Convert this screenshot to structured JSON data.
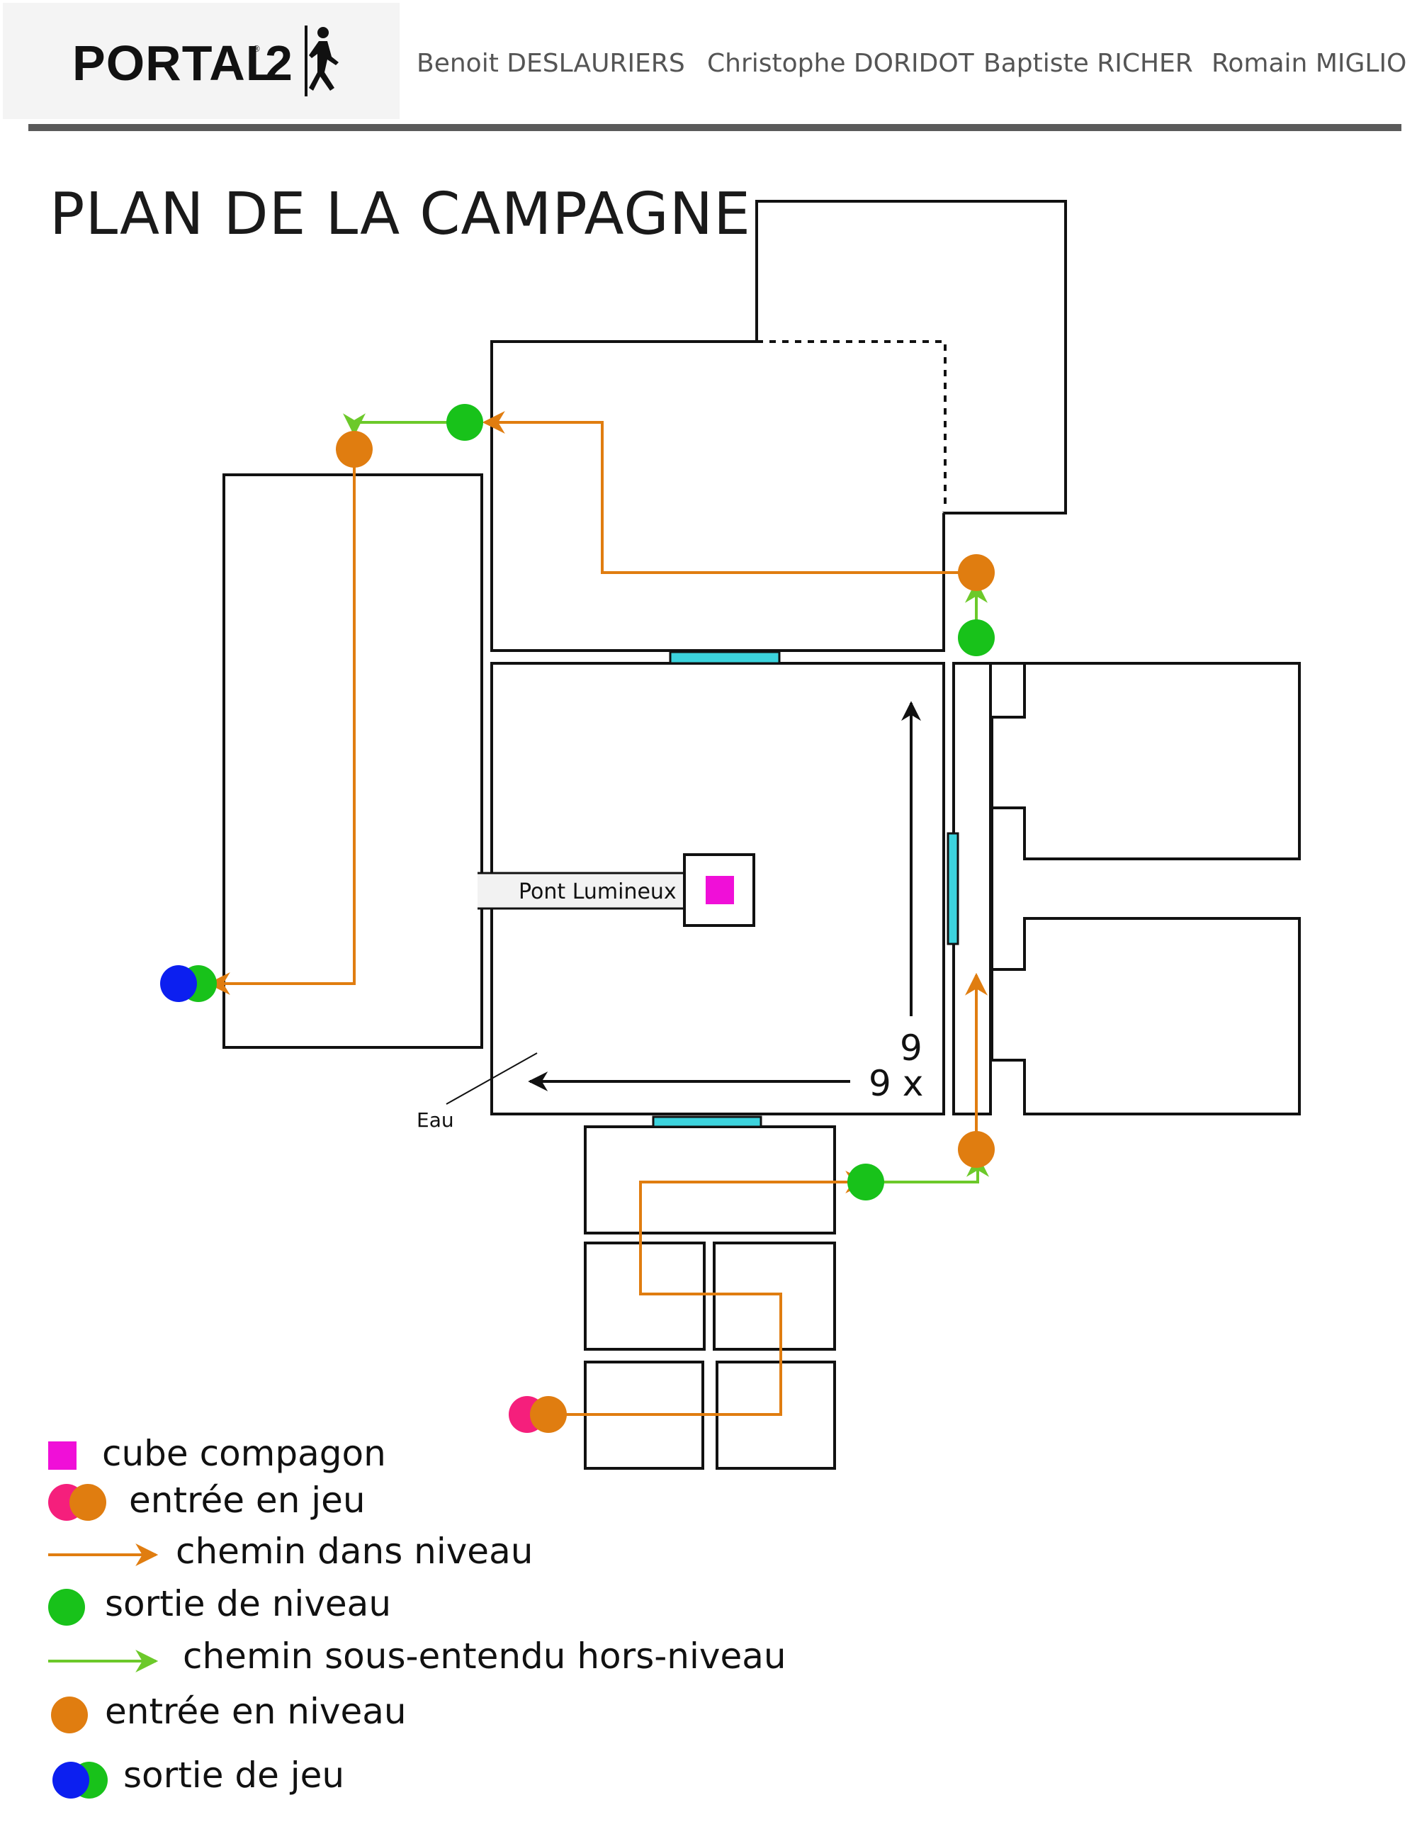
{
  "header": {
    "logo_text": "PORTAL",
    "logo_num": "2",
    "logo_reg": "®",
    "authors": [
      "Benoit DESLAURIERS",
      "Christophe DORIDOT",
      "Baptiste RICHER",
      "Romain MIGLIO"
    ]
  },
  "title": "PLAN DE LA CAMPAGNE",
  "map": {
    "bridge_label": "Pont Lumineux",
    "water_label": "Eau",
    "dim_vertical": "9",
    "dim_horizontal": "9 x"
  },
  "legend": {
    "cube": "cube compagon",
    "game_entry": "entrée en jeu",
    "level_path": "chemin dans niveau",
    "level_exit": "sortie de niveau",
    "offlevel_path": "chemin sous-entendu hors-niveau",
    "level_entry": "entrée en niveau",
    "game_exit": "sortie de jeu"
  },
  "colors": {
    "path_orange": "#e07d10",
    "path_green": "#6cc92a",
    "exit_green": "#18c21a",
    "entry_pink": "#f51f7c",
    "exit_blue": "#0c1ff0",
    "cube_magenta": "#f00fd8",
    "bridge_cyan": "#3cd3dd"
  }
}
